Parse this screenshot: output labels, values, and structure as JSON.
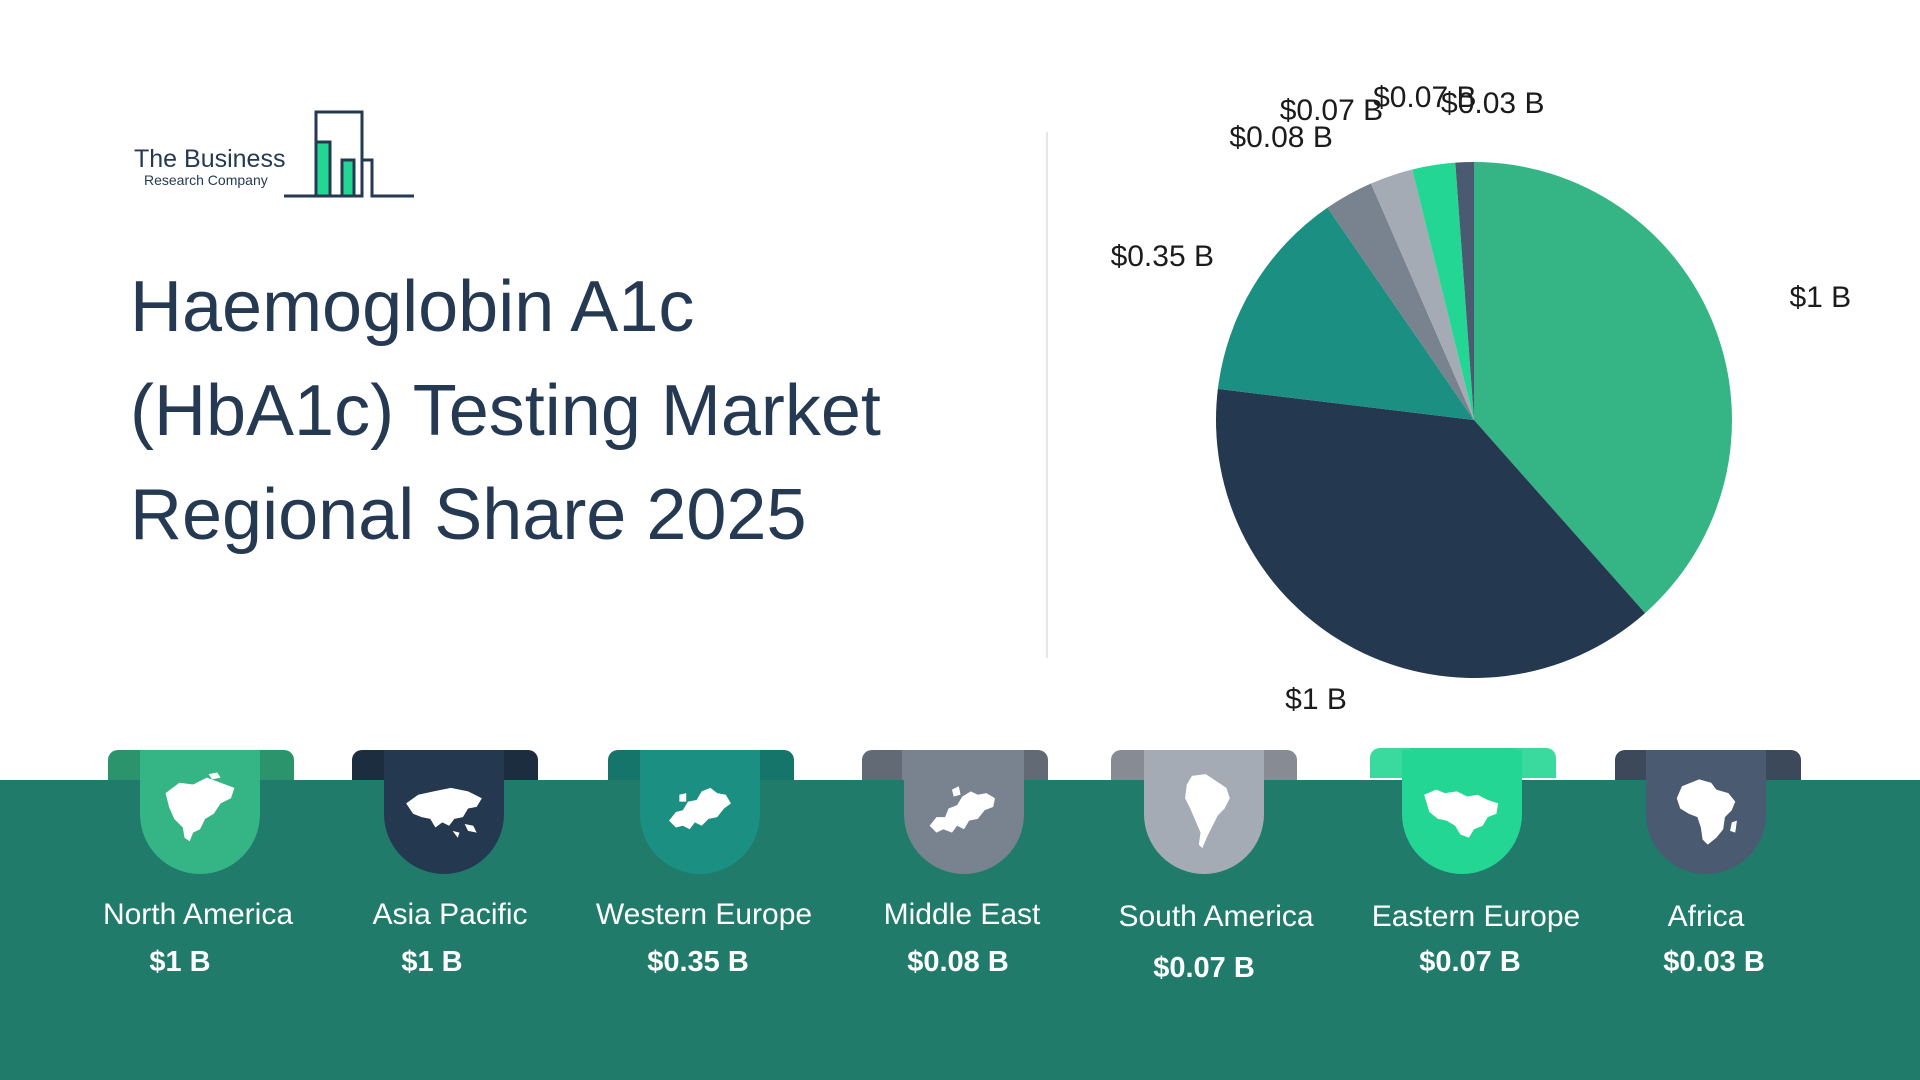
{
  "logo": {
    "line1": "The Business",
    "line2": "Research Company"
  },
  "title_lines": [
    "Haemoglobin A1c",
    "(HbA1c) Testing Market",
    "Regional Share 2025"
  ],
  "colors": {
    "band": "#217b6b",
    "title": "#253a52",
    "north_america": "#35b585",
    "asia_pacific": "#24384f",
    "western_europe": "#1b8f82",
    "middle_east": "#78838f",
    "south_america": "#a5abb5",
    "eastern_europe": "#24d694",
    "africa": "#4a5a70"
  },
  "chart_data": {
    "type": "pie",
    "title": "Haemoglobin A1c (HbA1c) Testing Market Regional Share 2025",
    "start_angle_deg": 0,
    "direction": "clockwise",
    "slices": [
      {
        "region": "North America",
        "value": 1.0,
        "label": "$1 B",
        "color": "#35b585",
        "icon": "north-america-map-icon"
      },
      {
        "region": "Asia Pacific",
        "value": 1.0,
        "label": "$1 B",
        "color": "#24384f",
        "icon": "asia-map-icon"
      },
      {
        "region": "Western Europe",
        "value": 0.35,
        "label": "$0.35 B",
        "color": "#1b8f82",
        "icon": "western-europe-map-icon"
      },
      {
        "region": "Middle East",
        "value": 0.08,
        "label": "$0.08 B",
        "color": "#78838f",
        "icon": "europe-map-icon"
      },
      {
        "region": "South America",
        "value": 0.07,
        "label": "$0.07 B",
        "color": "#a5abb5",
        "icon": "south-america-map-icon"
      },
      {
        "region": "Eastern Europe",
        "value": 0.07,
        "label": "$0.07 B",
        "color": "#24d694",
        "icon": "middle-east-map-icon"
      },
      {
        "region": "Africa",
        "value": 0.03,
        "label": "$0.03 B",
        "color": "#4a5a70",
        "icon": "africa-map-icon"
      }
    ]
  },
  "regions": [
    {
      "name": "North America",
      "value": "$1 B"
    },
    {
      "name": "Asia Pacific",
      "value": "$1 B"
    },
    {
      "name": "Western Europe",
      "value": "$0.35 B"
    },
    {
      "name": "Middle East",
      "value": "$0.08 B"
    },
    {
      "name": "South America",
      "value": "$0.07 B"
    },
    {
      "name": "Eastern Europe",
      "value": "$0.07 B"
    },
    {
      "name": "Africa",
      "value": "$0.03 B"
    }
  ]
}
